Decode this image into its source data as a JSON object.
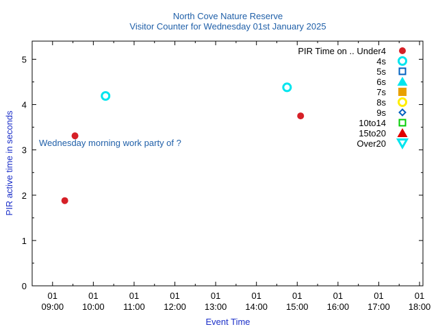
{
  "chart_data": {
    "type": "scatter",
    "title": "North Cove Nature Reserve",
    "subtitle": "Visitor Counter for Wednesday 01st January 2025",
    "xlabel": "Event Time",
    "ylabel": "PIR active time in seconds",
    "x_ticks": [
      "01\n09:00",
      "01\n10:00",
      "01\n11:00",
      "01\n12:00",
      "01\n13:00",
      "01\n14:00",
      "01\n15:00",
      "01\n16:00",
      "01\n17:00",
      "01\n18:00"
    ],
    "xlim": [
      "08:30",
      "18:05"
    ],
    "ylim": [
      0,
      5.4
    ],
    "y_ticks": [
      0,
      1,
      2,
      3,
      4,
      5
    ],
    "legend_position": "top-right",
    "legend_title": "PIR Time on ..",
    "annotations": [
      {
        "text": "Wednesday morning work party of ?",
        "x": "08:30",
        "y": 3.1
      }
    ],
    "series": [
      {
        "name": "Under4",
        "color": "#d62027",
        "marker": "filled-circle",
        "points": [
          {
            "x": "09:18",
            "y": 1.88
          },
          {
            "x": "09:33",
            "y": 3.31
          },
          {
            "x": "15:05",
            "y": 3.75
          }
        ]
      },
      {
        "name": "4s",
        "color": "#00e5ee",
        "marker": "open-circle",
        "points": [
          {
            "x": "10:18",
            "y": 4.19
          },
          {
            "x": "14:45",
            "y": 4.38
          }
        ]
      },
      {
        "name": "5s",
        "color": "#0060c0",
        "marker": "open-square",
        "points": []
      },
      {
        "name": "6s",
        "color": "#00e5ee",
        "marker": "filled-triangle-up",
        "points": []
      },
      {
        "name": "7s",
        "color": "#e8a000",
        "marker": "filled-square",
        "points": []
      },
      {
        "name": "8s",
        "color": "#ffee00",
        "marker": "open-circle",
        "points": []
      },
      {
        "name": "9s",
        "color": "#0060c0",
        "marker": "open-diamond",
        "points": []
      },
      {
        "name": "10to14",
        "color": "#00cc00",
        "marker": "open-square",
        "points": []
      },
      {
        "name": "15to20",
        "color": "#e00000",
        "marker": "filled-triangle-up",
        "points": []
      },
      {
        "name": "Over20",
        "color": "#00e5ee",
        "marker": "open-triangle-down",
        "points": []
      }
    ]
  }
}
